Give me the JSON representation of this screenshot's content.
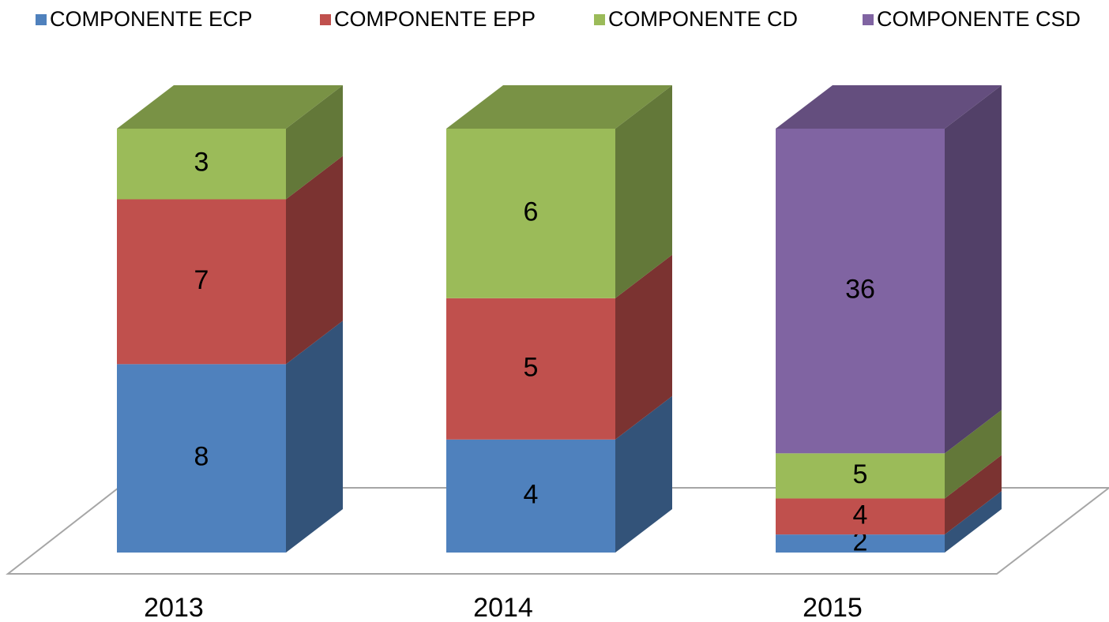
{
  "chart_data": {
    "type": "bar",
    "stacking": "percent",
    "categories": [
      "2013",
      "2014",
      "2015"
    ],
    "series": [
      {
        "name": "COMPONENTE ECP",
        "color": "#4f81bd",
        "values": [
          8,
          4,
          2
        ]
      },
      {
        "name": "COMPONENTE EPP",
        "color": "#c0504d",
        "values": [
          7,
          5,
          4
        ]
      },
      {
        "name": "COMPONENTE CD",
        "color": "#9bbb59",
        "values": [
          3,
          6,
          5
        ]
      },
      {
        "name": "COMPONENTE CSD",
        "color": "#8064a2",
        "values": [
          null,
          null,
          36
        ]
      }
    ],
    "legend": "top"
  }
}
